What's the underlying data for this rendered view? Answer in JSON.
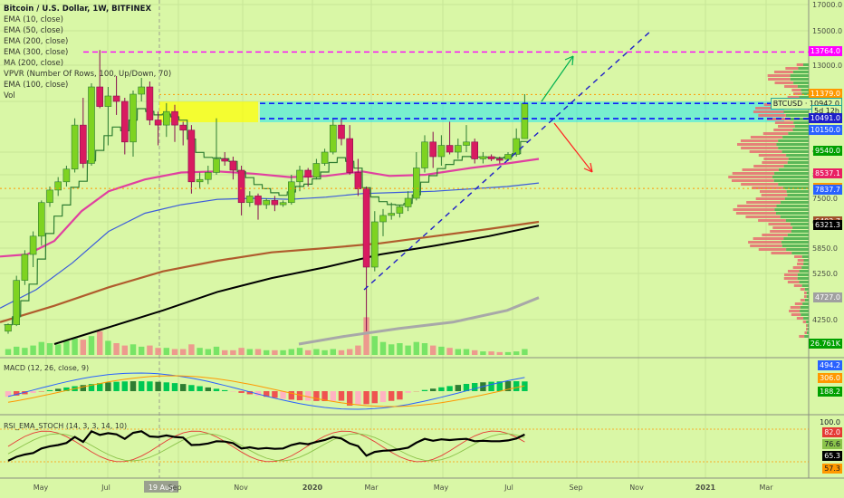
{
  "header": {
    "title": "Bitcoin / U.S. Dollar, 1W, BITFINEX",
    "indicators": [
      "EMA (10, close)",
      "EMA (50, close)",
      "EMA (200, close)",
      "EMA (300, close)",
      "MA (200, close)",
      "VPVR (Number Of Rows, 100, Up/Down, 70)",
      "EMA (100, close)",
      "Vol"
    ]
  },
  "panes": {
    "macd_label": "MACD (12, 26, close, 9)",
    "rsi_label": "RSI_EMA_STOCH (14, 3, 3, 14, 10)"
  },
  "crosshair_date": "19 Aug",
  "price_tags": [
    {
      "label": "13764.0",
      "value": 13764,
      "bg": "#ff00ff",
      "fg": "#ffffff"
    },
    {
      "label": "11379.0",
      "value": 11379,
      "bg": "#ff9800",
      "fg": "#ffffff"
    },
    {
      "label": "BTCUSD · 10942.0",
      "value": 10942,
      "bg": "#d9f7a6",
      "fg": "#131722",
      "border": "#26a69a"
    },
    {
      "label": "5d 12h",
      "value": 10720,
      "bg": "#d9f7a6",
      "fg": "#131722",
      "border": "#26a69a"
    },
    {
      "label": "10491.0",
      "value": 10491,
      "bg": "#1e1ec8",
      "fg": "#ffffff"
    },
    {
      "label": "10150.0",
      "value": 10150,
      "bg": "#2962ff",
      "fg": "#ffffff"
    },
    {
      "label": "9540.0",
      "value": 9540,
      "bg": "#00a000",
      "fg": "#ffffff"
    },
    {
      "label": "8537.1",
      "value": 8537.1,
      "bg": "#e91e63",
      "fg": "#ffffff"
    },
    {
      "label": "7918.1",
      "value": 7918.1,
      "bg": "#ff9800",
      "fg": "#ffffff"
    },
    {
      "label": "7837.7",
      "value": 7837.7,
      "bg": "#2962ff",
      "fg": "#ffffff"
    },
    {
      "label": "6402.7",
      "value": 6402.7,
      "bg": "#a0522d",
      "fg": "#ffffff"
    },
    {
      "label": "6321.3",
      "value": 6321.3,
      "bg": "#000000",
      "fg": "#ffffff"
    },
    {
      "label": "4727.0",
      "value": 4727,
      "bg": "#a0a0a0",
      "fg": "#ffffff"
    },
    {
      "label": "26.761K",
      "value": 3300,
      "bg": "#00a000",
      "fg": "#ffffff"
    }
  ],
  "macd_tags": [
    {
      "label": "494.2",
      "bg": "#2962ff",
      "fg": "#ffffff"
    },
    {
      "label": "306.0",
      "bg": "#ff9800",
      "fg": "#ffffff"
    },
    {
      "label": "188.2",
      "bg": "#00a000",
      "fg": "#ffffff"
    }
  ],
  "rsi_tags": [
    {
      "label": "100.0",
      "bg": "transparent",
      "fg": "#131722"
    },
    {
      "label": "82.0",
      "bg": "#e53935",
      "fg": "#ffffff"
    },
    {
      "label": "76.6",
      "bg": "#8bc34a",
      "fg": "#131722"
    },
    {
      "label": "65.3",
      "bg": "#000000",
      "fg": "#ffffff"
    },
    {
      "label": "57.3",
      "bg": "#ff9800",
      "fg": "#131722"
    }
  ],
  "chart_data": {
    "type": "candlestick",
    "symbol": "BTCUSD",
    "timeframe": "1W",
    "exchange": "BITFINEX",
    "x_axis_labels": [
      "May",
      "Jul",
      "19 Aug",
      "Sep",
      "Nov",
      "2020",
      "Mar",
      "May",
      "Jul",
      "Sep",
      "Nov",
      "2021",
      "Mar"
    ],
    "y_axis_labels": [
      "17000.0",
      "15000.0",
      "13000.0",
      "11000.0",
      "9500.0",
      "8500.0",
      "7500.0",
      "6400.0",
      "5850.0",
      "5250.0",
      "4250.0"
    ],
    "y_axis_values": [
      17000,
      15000,
      13000,
      11000,
      9500,
      8500,
      7500,
      6400,
      5850,
      5250,
      4250
    ],
    "candles": [
      [
        3800,
        4100,
        3700,
        4050
      ],
      [
        4050,
        5200,
        4000,
        5100
      ],
      [
        5100,
        5800,
        5000,
        5700
      ],
      [
        5700,
        6200,
        5400,
        6100
      ],
      [
        6100,
        7400,
        5900,
        7300
      ],
      [
        7300,
        8000,
        7100,
        7850
      ],
      [
        7850,
        8400,
        7600,
        8200
      ],
      [
        8200,
        8900,
        8000,
        8750
      ],
      [
        8750,
        10500,
        8600,
        10300
      ],
      [
        10300,
        11200,
        8800,
        9000
      ],
      [
        9000,
        12000,
        8900,
        11800
      ],
      [
        11800,
        13880,
        10800,
        10850
      ],
      [
        10850,
        11800,
        9700,
        11300
      ],
      [
        11300,
        12400,
        10600,
        11000
      ],
      [
        11000,
        11200,
        9400,
        9800
      ],
      [
        9800,
        11600,
        9300,
        11400
      ],
      [
        11400,
        12300,
        11000,
        11800
      ],
      [
        11800,
        12100,
        10300,
        10450
      ],
      [
        10450,
        10700,
        9700,
        10300
      ],
      [
        10300,
        10950,
        9950,
        10700
      ],
      [
        10700,
        10900,
        9800,
        10300
      ],
      [
        10300,
        10400,
        9700,
        10150
      ],
      [
        10150,
        10300,
        7700,
        8200
      ],
      [
        8200,
        8600,
        7900,
        8300
      ],
      [
        8300,
        8900,
        8100,
        8600
      ],
      [
        8600,
        10500,
        8500,
        9200
      ],
      [
        9200,
        9500,
        8900,
        9100
      ],
      [
        9100,
        9300,
        8300,
        8700
      ],
      [
        8700,
        8900,
        6700,
        7300
      ],
      [
        7300,
        7800,
        7100,
        7600
      ],
      [
        7600,
        7700,
        6500,
        7200
      ],
      [
        7200,
        7500,
        7000,
        7400
      ],
      [
        7400,
        7600,
        6900,
        7200
      ],
      [
        7200,
        7400,
        7100,
        7300
      ],
      [
        7300,
        8500,
        7200,
        8200
      ],
      [
        8200,
        8900,
        7800,
        8700
      ],
      [
        8700,
        8800,
        8000,
        8400
      ],
      [
        8400,
        9200,
        8300,
        9000
      ],
      [
        9000,
        9600,
        8900,
        9500
      ],
      [
        9500,
        10500,
        9400,
        10300
      ],
      [
        10300,
        10500,
        9700,
        9900
      ],
      [
        9900,
        10300,
        8500,
        8600
      ],
      [
        8600,
        9200,
        7600,
        7900
      ],
      [
        7900,
        8000,
        3800,
        5400
      ],
      [
        5400,
        6900,
        5300,
        6400
      ],
      [
        6400,
        7000,
        6100,
        6700
      ],
      [
        6700,
        7300,
        6500,
        6800
      ],
      [
        6800,
        7200,
        6600,
        7100
      ],
      [
        7100,
        7800,
        6900,
        7500
      ],
      [
        7500,
        9500,
        7400,
        8800
      ],
      [
        8800,
        10000,
        8600,
        9800
      ],
      [
        9800,
        10100,
        8800,
        9300
      ],
      [
        9300,
        10000,
        8900,
        9700
      ],
      [
        9700,
        10400,
        9400,
        9500
      ],
      [
        9500,
        9900,
        9200,
        9700
      ],
      [
        9700,
        10300,
        9500,
        9800
      ],
      [
        9800,
        9900,
        9000,
        9200
      ],
      [
        9200,
        9500,
        9000,
        9300
      ],
      [
        9300,
        9400,
        9100,
        9200
      ],
      [
        9200,
        9300,
        9000,
        9180
      ],
      [
        9180,
        9500,
        9100,
        9400
      ],
      [
        9400,
        10200,
        9300,
        9900
      ],
      [
        9900,
        11400,
        9900,
        10942
      ]
    ],
    "volume_levels": [
      0.25,
      0.35,
      0.3,
      0.4,
      0.55,
      0.5,
      0.45,
      0.6,
      0.7,
      0.65,
      0.8,
      1.0,
      0.6,
      0.5,
      0.4,
      0.45,
      0.35,
      0.4,
      0.3,
      0.3,
      0.25,
      0.25,
      0.45,
      0.3,
      0.25,
      0.35,
      0.2,
      0.2,
      0.3,
      0.25,
      0.25,
      0.2,
      0.2,
      0.2,
      0.25,
      0.3,
      0.2,
      0.25,
      0.2,
      0.25,
      0.2,
      0.25,
      0.4,
      1.6,
      0.8,
      0.55,
      0.45,
      0.5,
      0.4,
      0.55,
      0.5,
      0.4,
      0.35,
      0.3,
      0.25,
      0.25,
      0.2,
      0.15,
      0.15,
      0.12,
      0.12,
      0.15,
      0.25
    ],
    "horizontal_levels": [
      {
        "value": 13764,
        "color": "#ff00ff",
        "style": "dashed"
      },
      {
        "value": 11379,
        "color": "#ff9800",
        "style": "dotted"
      },
      {
        "value": 10942,
        "color": "#0000ff",
        "style": "dashed"
      },
      {
        "value": 10491,
        "color": "#0000ff",
        "style": "dashed"
      },
      {
        "value": 7918.1,
        "color": "#ff9800",
        "style": "dotted"
      }
    ],
    "resistance_zones": [
      {
        "from": 10491,
        "to": 10942,
        "color": "#00e5ff"
      },
      {
        "from": 10491,
        "to": 10942,
        "color": "#ffff00"
      }
    ],
    "trendline": {
      "from_index": 42,
      "from_value": 4800,
      "to_index": 76,
      "to_value": 16800,
      "color": "#1e1ec8",
      "style": "dashed"
    },
    "projection_up": {
      "to_value": 13400,
      "color": "#00b050"
    },
    "projection_down": {
      "to_value": 8700,
      "color": "#ff2020"
    },
    "macd_values": {
      "macd": 494.2,
      "signal": 306.0,
      "histogram": 188.2
    },
    "rsi_values": {
      "k": 82.0,
      "d": 76.6,
      "rsi": 65.3,
      "ema": 57.3
    }
  }
}
